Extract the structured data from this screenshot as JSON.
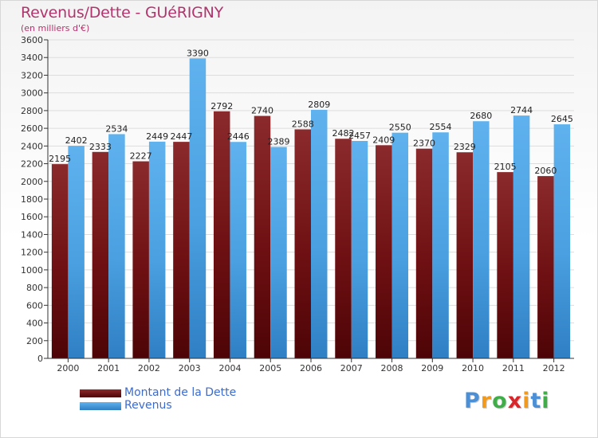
{
  "chart_data": {
    "type": "bar",
    "title": "Revenus/Dette - GUéRIGNY",
    "subtitle": "(en milliers d'€)",
    "categories": [
      "2000",
      "2001",
      "2002",
      "2003",
      "2004",
      "2005",
      "2006",
      "2007",
      "2008",
      "2009",
      "2010",
      "2011",
      "2012"
    ],
    "series": [
      {
        "name": "Montant de la Dette",
        "color": "#7a1518",
        "values": [
          2195,
          2333,
          2227,
          2447,
          2792,
          2740,
          2588,
          2482,
          2409,
          2370,
          2329,
          2105,
          2060
        ]
      },
      {
        "name": "Revenus",
        "color": "#4ba3e3",
        "values": [
          2402,
          2534,
          2449,
          3390,
          2446,
          2389,
          2809,
          2457,
          2550,
          2554,
          2680,
          2744,
          2645
        ]
      }
    ],
    "value_label_text": [
      [
        "2195",
        "2333",
        "2227",
        "2447",
        "2792",
        "2740",
        "2588",
        "2482",
        "2409",
        "2370",
        "2329",
        "2105",
        "2060"
      ],
      [
        "2402",
        "2534",
        "2449",
        "3390",
        "2446",
        "2389",
        "2809",
        "2457",
        "2550",
        "2554",
        "2680",
        "2744",
        "2645"
      ]
    ],
    "ylim": [
      0,
      3600
    ],
    "yticks": [
      0,
      200,
      400,
      600,
      800,
      1000,
      1200,
      1400,
      1600,
      1800,
      2000,
      2200,
      2400,
      2600,
      2800,
      3000,
      3200,
      3400,
      3600
    ],
    "xlabel": "",
    "ylabel": "",
    "grid": true,
    "legend_position": "bottom-left"
  },
  "colors": {
    "title": "#b0356c",
    "legend_text": "#3c6bd0",
    "axis": "#333333",
    "grid": "#dddddd"
  },
  "logo": {
    "letters": [
      "P",
      "r",
      "o",
      "x",
      "i",
      "t",
      "i"
    ],
    "letter_colors": [
      "#4b8fd6",
      "#f29a1c",
      "#3fae49",
      "#d8262b",
      "#f29a1c",
      "#4b8fd6",
      "#3fae49"
    ],
    "text": "Proxiti"
  }
}
